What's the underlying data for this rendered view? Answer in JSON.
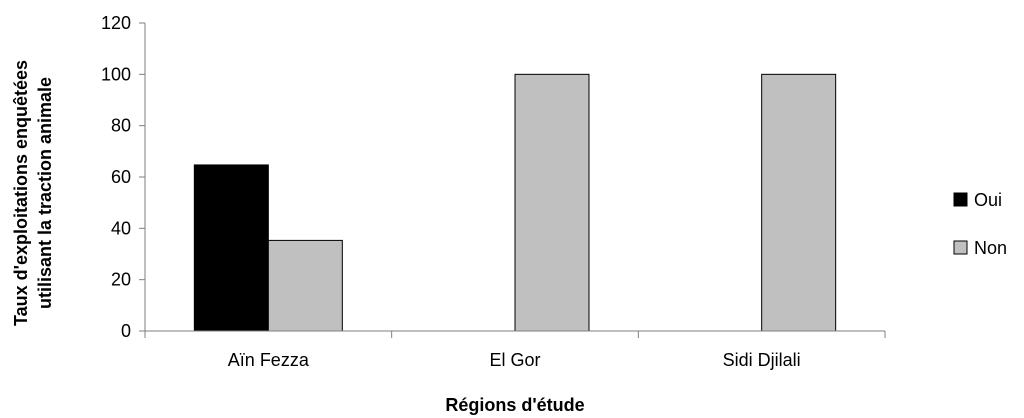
{
  "chart_data": {
    "type": "bar",
    "categories": [
      "Aïn Fezza",
      "El Gor",
      "Sidi Djilali"
    ],
    "series": [
      {
        "name": "Oui",
        "values": [
          64.7,
          0,
          0
        ],
        "color": "#000000"
      },
      {
        "name": "Non",
        "values": [
          35.3,
          100,
          100
        ],
        "color": "#c0c0c0"
      }
    ],
    "title": "",
    "xlabel": "Régions d'étude",
    "ylabel_lines": [
      "Taux d'exploitations enquêtées",
      "utilisant la traction animale"
    ],
    "ylim": [
      0,
      120
    ],
    "yticks": [
      0,
      20,
      40,
      60,
      80,
      100,
      120
    ],
    "grid": false,
    "legend_position": "right"
  }
}
